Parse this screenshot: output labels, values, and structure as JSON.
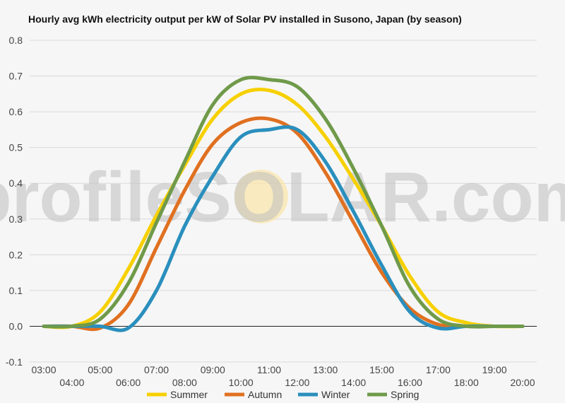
{
  "title": "Hourly avg kWh electricity output per kW of Solar PV installed in Susono, Japan (by season)",
  "watermark": {
    "text": "profileSOLAR.com"
  },
  "colors": {
    "Summer": "#f7d000",
    "Autumn": "#e07020",
    "Winter": "#2a8fbd",
    "Spring": "#6f9a4a"
  },
  "chart_data": {
    "type": "line",
    "title": "Hourly avg kWh electricity output per kW of Solar PV installed in Susono, Japan (by season)",
    "xlabel": "",
    "ylabel": "",
    "ylim": [
      -0.1,
      0.8
    ],
    "yticks": [
      "-0.1",
      "0.0",
      "0.1",
      "0.2",
      "0.3",
      "0.4",
      "0.5",
      "0.6",
      "0.7",
      "0.8"
    ],
    "xlim": [
      3,
      20
    ],
    "xticks": [
      "03:00",
      "04:00",
      "05:00",
      "06:00",
      "07:00",
      "08:00",
      "09:00",
      "10:00",
      "11:00",
      "12:00",
      "13:00",
      "14:00",
      "15:00",
      "16:00",
      "17:00",
      "18:00",
      "19:00",
      "20:00"
    ],
    "x": [
      3,
      4,
      5,
      6,
      7,
      8,
      9,
      10,
      11,
      12,
      13,
      14,
      15,
      16,
      17,
      18,
      19,
      20
    ],
    "legend_position": "bottom",
    "grid": true,
    "series": [
      {
        "name": "Summer",
        "values": [
          0.0,
          0.0,
          0.04,
          0.16,
          0.31,
          0.45,
          0.58,
          0.65,
          0.66,
          0.62,
          0.53,
          0.41,
          0.28,
          0.14,
          0.04,
          0.01,
          0.0,
          0.0
        ]
      },
      {
        "name": "Autumn",
        "values": [
          0.0,
          0.0,
          -0.005,
          0.06,
          0.22,
          0.38,
          0.51,
          0.57,
          0.58,
          0.54,
          0.43,
          0.29,
          0.15,
          0.05,
          0.005,
          0.0,
          0.0,
          0.0
        ]
      },
      {
        "name": "Winter",
        "values": [
          0.0,
          0.0,
          0.0,
          -0.005,
          0.1,
          0.28,
          0.42,
          0.53,
          0.55,
          0.55,
          0.46,
          0.32,
          0.17,
          0.04,
          -0.005,
          0.0,
          0.0,
          0.0
        ]
      },
      {
        "name": "Spring",
        "values": [
          0.0,
          0.0,
          0.02,
          0.12,
          0.29,
          0.46,
          0.62,
          0.69,
          0.69,
          0.67,
          0.58,
          0.44,
          0.28,
          0.11,
          0.02,
          0.0,
          0.0,
          0.0
        ]
      }
    ]
  }
}
